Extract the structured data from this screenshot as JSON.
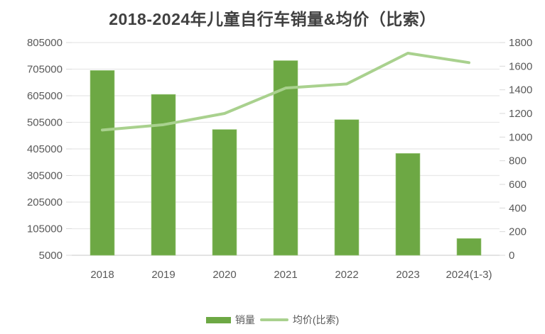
{
  "chart_data": {
    "type": "combo-bar-line",
    "title": "2018-2024年儿童自行车销量&均价（比索）",
    "categories": [
      "2018",
      "2019",
      "2020",
      "2021",
      "2022",
      "2023",
      "2024(1-3)"
    ],
    "series": [
      {
        "name": "销量",
        "type": "bar",
        "axis": "left",
        "color": "#6DA844",
        "values": [
          700000,
          610000,
          478000,
          737000,
          515000,
          388000,
          68000
        ]
      },
      {
        "name": "均价(比索)",
        "type": "line",
        "axis": "right",
        "color": "#A9D18E",
        "values": [
          1060,
          1105,
          1200,
          1415,
          1450,
          1710,
          1630
        ]
      }
    ],
    "left_axis": {
      "min": 5000,
      "max": 805000,
      "step": 100000,
      "tick_labels": [
        "5000",
        "105000",
        "205000",
        "305000",
        "405000",
        "505000",
        "605000",
        "705000",
        "805000"
      ]
    },
    "right_axis": {
      "min": 0,
      "max": 1800,
      "step": 200,
      "tick_labels": [
        "0",
        "200",
        "400",
        "600",
        "800",
        "1000",
        "1200",
        "1400",
        "1600",
        "1800"
      ]
    },
    "grid": "horizontal",
    "legend_position": "bottom",
    "colors": {
      "title_text": "#404040",
      "axis_text": "#595959",
      "gridline": "#E8E8E8",
      "axis_line": "#D2D2D2",
      "tick_mark": "#D9D9D9",
      "background": "#FFFFFF"
    }
  }
}
